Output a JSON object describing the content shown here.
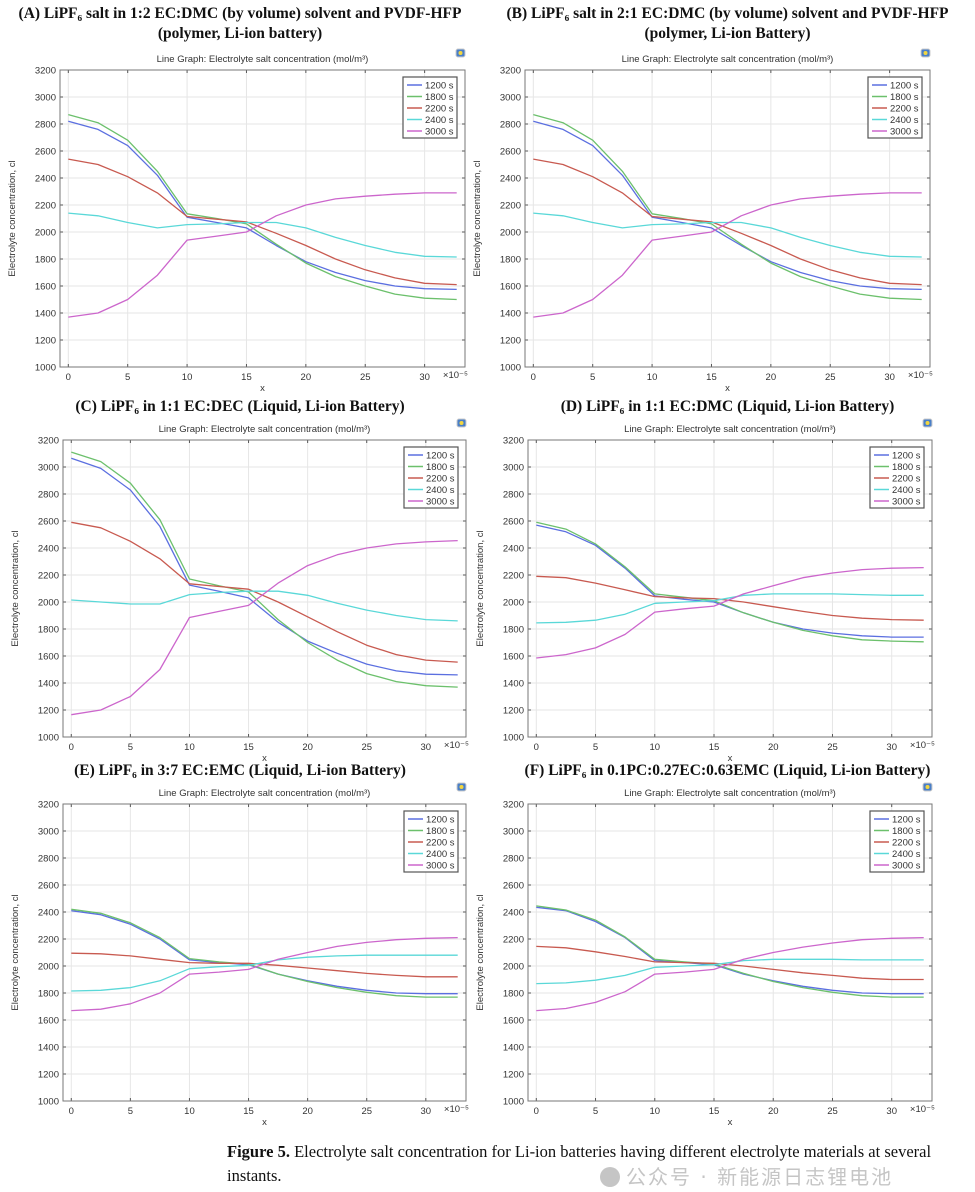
{
  "figure_caption": {
    "label": "Figure 5.",
    "text": " Electrolyte salt concentration for Li-ion batteries having different electrolyte materials at several instants."
  },
  "watermark": "公众号 · 新能源日志锂电池",
  "chart_data": [
    {
      "type": "line",
      "title": "(A) LiPF₆ salt in 1:2 EC:DMC (by volume) solvent and PVDF-HFP (polymer, Li-ion battery)",
      "plot_title": "Line Graph: Electrolyte salt concentration (mol/m³)",
      "xlabel": "x",
      "x_multiplier": "×10⁻⁵",
      "ylabel": "Electrolyte concentration, cl",
      "xlim": [
        -0.7,
        33.4
      ],
      "ylim": [
        1000,
        3200
      ],
      "xticks": [
        0,
        5,
        10,
        15,
        20,
        25,
        30
      ],
      "yticks": [
        1000,
        1200,
        1400,
        1600,
        1800,
        2000,
        2200,
        2400,
        2600,
        2800,
        3000,
        3200
      ],
      "grid": true,
      "legend": "top-right",
      "x": [
        0,
        2.5,
        5,
        7.5,
        10,
        12.5,
        15,
        17.5,
        20,
        22.5,
        25,
        27.5,
        30,
        32.7
      ],
      "series": [
        {
          "name": "1200 s",
          "color": "#5b6fe0",
          "values": [
            2820,
            2760,
            2640,
            2420,
            2110,
            2070,
            2030,
            1900,
            1780,
            1700,
            1640,
            1600,
            1580,
            1575
          ]
        },
        {
          "name": "1800 s",
          "color": "#6cc06c",
          "values": [
            2870,
            2810,
            2680,
            2450,
            2135,
            2100,
            2060,
            1910,
            1770,
            1670,
            1600,
            1540,
            1510,
            1500
          ]
        },
        {
          "name": "2200 s",
          "color": "#c85a50",
          "values": [
            2540,
            2500,
            2410,
            2290,
            2115,
            2095,
            2075,
            1990,
            1900,
            1800,
            1720,
            1660,
            1620,
            1610
          ]
        },
        {
          "name": "2400 s",
          "color": "#5ad8d8",
          "values": [
            2140,
            2120,
            2070,
            2030,
            2055,
            2060,
            2070,
            2070,
            2030,
            1960,
            1900,
            1850,
            1820,
            1815
          ]
        },
        {
          "name": "3000 s",
          "color": "#cc66cc",
          "values": [
            1370,
            1400,
            1500,
            1680,
            1940,
            1970,
            2000,
            2120,
            2200,
            2245,
            2265,
            2280,
            2290,
            2290
          ]
        }
      ]
    },
    {
      "type": "line",
      "title": "(B) LiPF₆ salt in 2:1 EC:DMC (by volume) solvent and PVDF-HFP (polymer, Li-ion Battery)",
      "plot_title": "Line Graph: Electrolyte salt concentration (mol/m³)",
      "xlabel": "x",
      "x_multiplier": "×10⁻⁵",
      "ylabel": "Electrolyte concentration, cl",
      "xlim": [
        -0.7,
        33.4
      ],
      "ylim": [
        1000,
        3200
      ],
      "xticks": [
        0,
        5,
        10,
        15,
        20,
        25,
        30
      ],
      "yticks": [
        1000,
        1200,
        1400,
        1600,
        1800,
        2000,
        2200,
        2400,
        2600,
        2800,
        3000,
        3200
      ],
      "grid": true,
      "legend": "top-right",
      "x": [
        0,
        2.5,
        5,
        7.5,
        10,
        12.5,
        15,
        17.5,
        20,
        22.5,
        25,
        27.5,
        30,
        32.7
      ],
      "series": [
        {
          "name": "1200 s",
          "color": "#5b6fe0",
          "values": [
            2820,
            2760,
            2640,
            2420,
            2110,
            2070,
            2030,
            1900,
            1780,
            1700,
            1640,
            1600,
            1580,
            1575
          ]
        },
        {
          "name": "1800 s",
          "color": "#6cc06c",
          "values": [
            2870,
            2810,
            2680,
            2450,
            2135,
            2100,
            2060,
            1910,
            1770,
            1670,
            1600,
            1540,
            1510,
            1500
          ]
        },
        {
          "name": "2200 s",
          "color": "#c85a50",
          "values": [
            2540,
            2500,
            2410,
            2290,
            2115,
            2095,
            2075,
            1990,
            1900,
            1800,
            1720,
            1660,
            1620,
            1610
          ]
        },
        {
          "name": "2400 s",
          "color": "#5ad8d8",
          "values": [
            2140,
            2120,
            2070,
            2030,
            2055,
            2060,
            2070,
            2070,
            2030,
            1960,
            1900,
            1850,
            1820,
            1815
          ]
        },
        {
          "name": "3000 s",
          "color": "#cc66cc",
          "values": [
            1370,
            1400,
            1500,
            1680,
            1940,
            1970,
            2000,
            2120,
            2200,
            2245,
            2265,
            2280,
            2290,
            2290
          ]
        }
      ]
    },
    {
      "type": "line",
      "title": "(C) LiPF₆ in 1:1 EC:DEC (Liquid, Li-ion Battery)",
      "plot_title": "Line Graph: Electrolyte salt concentration (mol/m³)",
      "xlabel": "x",
      "x_multiplier": "×10⁻⁵",
      "ylabel": "Electrolyte concentration, cl",
      "xlim": [
        -0.7,
        33.4
      ],
      "ylim": [
        1000,
        3200
      ],
      "xticks": [
        0,
        5,
        10,
        15,
        20,
        25,
        30
      ],
      "yticks": [
        1000,
        1200,
        1400,
        1600,
        1800,
        2000,
        2200,
        2400,
        2600,
        2800,
        3000,
        3200
      ],
      "grid": true,
      "legend": "top-right",
      "x": [
        0,
        2.5,
        5,
        7.5,
        10,
        12.5,
        15,
        17.5,
        20,
        22.5,
        25,
        27.5,
        30,
        32.7
      ],
      "series": [
        {
          "name": "1200 s",
          "color": "#5b6fe0",
          "values": [
            3065,
            2990,
            2830,
            2560,
            2125,
            2080,
            2030,
            1850,
            1710,
            1620,
            1540,
            1490,
            1465,
            1460
          ]
        },
        {
          "name": "1800 s",
          "color": "#6cc06c",
          "values": [
            3110,
            3040,
            2880,
            2610,
            2170,
            2120,
            2075,
            1870,
            1700,
            1570,
            1470,
            1410,
            1380,
            1370
          ]
        },
        {
          "name": "2200 s",
          "color": "#c85a50",
          "values": [
            2590,
            2550,
            2450,
            2320,
            2135,
            2115,
            2095,
            2000,
            1890,
            1780,
            1680,
            1610,
            1570,
            1555
          ]
        },
        {
          "name": "2400 s",
          "color": "#5ad8d8",
          "values": [
            2015,
            2000,
            1985,
            1985,
            2055,
            2070,
            2080,
            2080,
            2050,
            1990,
            1940,
            1900,
            1870,
            1860
          ]
        },
        {
          "name": "3000 s",
          "color": "#cc66cc",
          "values": [
            1165,
            1200,
            1300,
            1500,
            1885,
            1930,
            1975,
            2140,
            2270,
            2350,
            2400,
            2430,
            2445,
            2455
          ]
        }
      ]
    },
    {
      "type": "line",
      "title": "(D) LiPF₆ in 1:1 EC:DMC (Liquid, Li-ion Battery)",
      "plot_title": "Line Graph: Electrolyte salt concentration (mol/m³)",
      "xlabel": "x",
      "x_multiplier": "×10⁻⁵",
      "ylabel": "Electrolyte concentration, cl",
      "xlim": [
        -0.7,
        33.4
      ],
      "ylim": [
        1000,
        3200
      ],
      "xticks": [
        0,
        5,
        10,
        15,
        20,
        25,
        30
      ],
      "yticks": [
        1000,
        1200,
        1400,
        1600,
        1800,
        2000,
        2200,
        2400,
        2600,
        2800,
        3000,
        3200
      ],
      "grid": true,
      "legend": "top-right",
      "x": [
        0,
        2.5,
        5,
        7.5,
        10,
        12.5,
        15,
        17.5,
        20,
        22.5,
        25,
        27.5,
        30,
        32.7
      ],
      "series": [
        {
          "name": "1200 s",
          "color": "#5b6fe0",
          "values": [
            2570,
            2520,
            2420,
            2250,
            2045,
            2020,
            2000,
            1920,
            1850,
            1800,
            1770,
            1750,
            1740,
            1740
          ]
        },
        {
          "name": "1800 s",
          "color": "#6cc06c",
          "values": [
            2590,
            2540,
            2430,
            2260,
            2060,
            2035,
            2010,
            1920,
            1850,
            1790,
            1750,
            1720,
            1710,
            1705
          ]
        },
        {
          "name": "2200 s",
          "color": "#c85a50",
          "values": [
            2190,
            2180,
            2140,
            2090,
            2040,
            2030,
            2025,
            2000,
            1965,
            1930,
            1900,
            1880,
            1870,
            1865
          ]
        },
        {
          "name": "2400 s",
          "color": "#5ad8d8",
          "values": [
            1845,
            1850,
            1865,
            1910,
            1990,
            2000,
            2010,
            2050,
            2060,
            2060,
            2060,
            2055,
            2050,
            2050
          ]
        },
        {
          "name": "3000 s",
          "color": "#cc66cc",
          "values": [
            1585,
            1610,
            1660,
            1760,
            1925,
            1950,
            1970,
            2060,
            2120,
            2180,
            2215,
            2240,
            2250,
            2255
          ]
        }
      ]
    },
    {
      "type": "line",
      "title": "(E) LiPF₆ in 3:7 EC:EMC (Liquid, Li-ion Battery)",
      "plot_title": "Line Graph: Electrolyte salt concentration (mol/m³)",
      "xlabel": "x",
      "x_multiplier": "×10⁻⁵",
      "ylabel": "Electrolyte concentration, cl",
      "xlim": [
        -0.7,
        33.4
      ],
      "ylim": [
        1000,
        3200
      ],
      "xticks": [
        0,
        5,
        10,
        15,
        20,
        25,
        30
      ],
      "yticks": [
        1000,
        1200,
        1400,
        1600,
        1800,
        2000,
        2200,
        2400,
        2600,
        2800,
        3000,
        3200
      ],
      "grid": true,
      "legend": "top-right",
      "x": [
        0,
        2.5,
        5,
        7.5,
        10,
        12.5,
        15,
        17.5,
        20,
        22.5,
        25,
        27.5,
        30,
        32.7
      ],
      "series": [
        {
          "name": "1200 s",
          "color": "#5b6fe0",
          "values": [
            2410,
            2380,
            2310,
            2200,
            2045,
            2025,
            2010,
            1940,
            1890,
            1850,
            1820,
            1800,
            1795,
            1795
          ]
        },
        {
          "name": "1800 s",
          "color": "#6cc06c",
          "values": [
            2420,
            2390,
            2320,
            2210,
            2055,
            2030,
            2015,
            1940,
            1885,
            1840,
            1805,
            1780,
            1770,
            1770
          ]
        },
        {
          "name": "2200 s",
          "color": "#c85a50",
          "values": [
            2095,
            2090,
            2075,
            2050,
            2025,
            2020,
            2020,
            2005,
            1985,
            1965,
            1945,
            1930,
            1920,
            1920
          ]
        },
        {
          "name": "2400 s",
          "color": "#5ad8d8",
          "values": [
            1815,
            1820,
            1840,
            1890,
            1980,
            1995,
            2005,
            2045,
            2065,
            2075,
            2080,
            2080,
            2080,
            2080
          ]
        },
        {
          "name": "3000 s",
          "color": "#cc66cc",
          "values": [
            1670,
            1680,
            1720,
            1800,
            1940,
            1955,
            1975,
            2050,
            2100,
            2145,
            2175,
            2195,
            2205,
            2210
          ]
        }
      ]
    },
    {
      "type": "line",
      "title": "(F) LiPF₆ in 0.1PC:0.27EC:0.63EMC (Liquid, Li-ion Battery)",
      "plot_title": "Line Graph: Electrolyte salt concentration (mol/m³)",
      "xlabel": "x",
      "x_multiplier": "×10⁻⁵",
      "ylabel": "Electrolyte concentration, cl",
      "xlim": [
        -0.7,
        33.4
      ],
      "ylim": [
        1000,
        3200
      ],
      "xticks": [
        0,
        5,
        10,
        15,
        20,
        25,
        30
      ],
      "yticks": [
        1000,
        1200,
        1400,
        1600,
        1800,
        2000,
        2200,
        2400,
        2600,
        2800,
        3000,
        3200
      ],
      "grid": true,
      "legend": "top-right",
      "x": [
        0,
        2.5,
        5,
        7.5,
        10,
        12.5,
        15,
        17.5,
        20,
        22.5,
        25,
        27.5,
        30,
        32.7
      ],
      "series": [
        {
          "name": "1200 s",
          "color": "#5b6fe0",
          "values": [
            2435,
            2410,
            2330,
            2210,
            2040,
            2025,
            2010,
            1940,
            1890,
            1850,
            1820,
            1800,
            1795,
            1795
          ]
        },
        {
          "name": "1800 s",
          "color": "#6cc06c",
          "values": [
            2445,
            2415,
            2340,
            2215,
            2050,
            2030,
            2015,
            1945,
            1885,
            1840,
            1805,
            1780,
            1770,
            1770
          ]
        },
        {
          "name": "2200 s",
          "color": "#c85a50",
          "values": [
            2145,
            2135,
            2105,
            2070,
            2030,
            2025,
            2020,
            2000,
            1975,
            1950,
            1930,
            1910,
            1900,
            1900
          ]
        },
        {
          "name": "2400 s",
          "color": "#5ad8d8",
          "values": [
            1870,
            1875,
            1895,
            1930,
            1990,
            2000,
            2010,
            2040,
            2050,
            2050,
            2050,
            2045,
            2045,
            2045
          ]
        },
        {
          "name": "3000 s",
          "color": "#cc66cc",
          "values": [
            1670,
            1685,
            1730,
            1810,
            1940,
            1955,
            1975,
            2050,
            2100,
            2140,
            2170,
            2195,
            2205,
            2210
          ]
        }
      ]
    }
  ]
}
